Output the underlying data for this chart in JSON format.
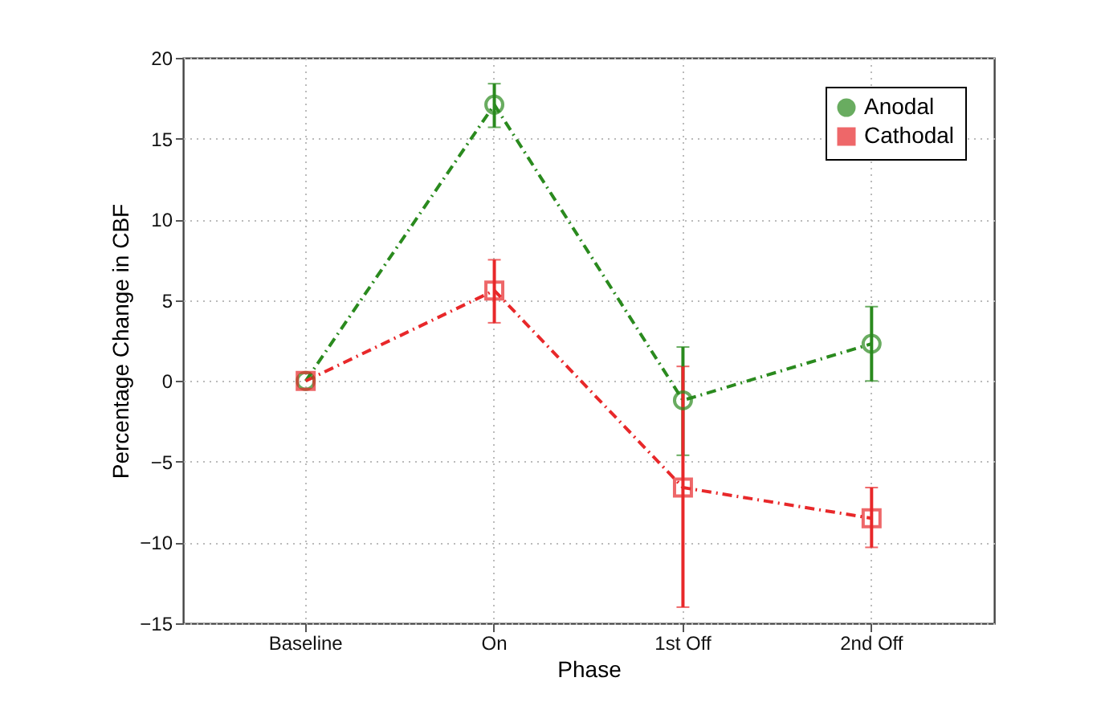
{
  "chart_data": {
    "type": "line",
    "xlabel": "Phase",
    "ylabel": "Percentage Change in CBF",
    "categories": [
      "Baseline",
      "On",
      "1st Off",
      "2nd Off"
    ],
    "series": [
      {
        "name": "Anodal",
        "color": "#2a8a1e",
        "marker": "circle",
        "values": [
          0,
          17.1,
          -1.2,
          2.3
        ],
        "errors": [
          null,
          [
            15.7,
            18.4
          ],
          [
            -4.6,
            2.1
          ],
          [
            0,
            4.6
          ]
        ]
      },
      {
        "name": "Cathodal",
        "color": "#e8282a",
        "marker": "square",
        "values": [
          0,
          5.6,
          -6.6,
          -8.5
        ],
        "errors": [
          null,
          [
            3.6,
            7.5
          ],
          [
            -14.0,
            0.9
          ],
          [
            -10.3,
            -6.6
          ]
        ]
      }
    ],
    "ylim": [
      -15,
      20
    ],
    "yticks": [
      -15,
      -10,
      -5,
      0,
      5,
      10,
      15,
      20
    ],
    "grid": true,
    "legend": "top right",
    "line_style": "dashed"
  }
}
